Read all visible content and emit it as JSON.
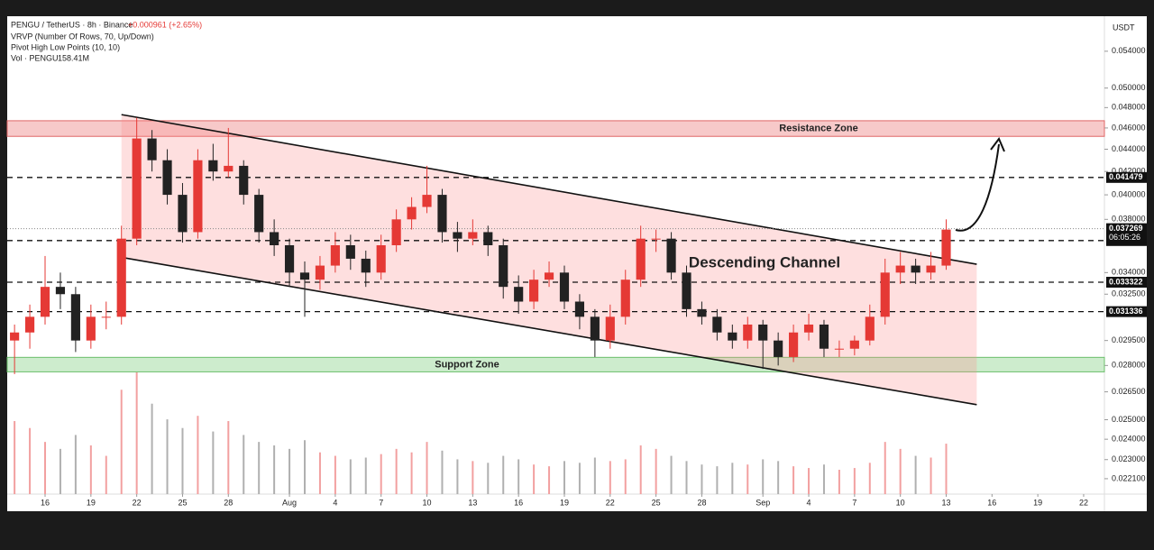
{
  "chart_data": {
    "type": "candlestick",
    "header": {
      "symbol": "PENGU / TetherUS · 8h · Binance",
      "change": "+0.000961 (+2.65%)",
      "indicator1": "VRVP (Number Of Rows, 70, Up/Down)",
      "indicator2": "Pivot High Low Points (10, 10)",
      "volume_label": "Vol · PENGU",
      "volume_value": "158.41M"
    },
    "y_unit": "USDT",
    "log_scale": true,
    "xlim": [
      13.52,
      85.36
    ],
    "xticks": [
      {
        "value": 16,
        "label": "16"
      },
      {
        "value": 19,
        "label": "19"
      },
      {
        "value": 22,
        "label": "22"
      },
      {
        "value": 25,
        "label": "25"
      },
      {
        "value": 28,
        "label": "28"
      },
      {
        "value": 32,
        "label": "Aug"
      },
      {
        "value": 35,
        "label": "4"
      },
      {
        "value": 38,
        "label": "7"
      },
      {
        "value": 41,
        "label": "10"
      },
      {
        "value": 44,
        "label": "13"
      },
      {
        "value": 47,
        "label": "16"
      },
      {
        "value": 50,
        "label": "19"
      },
      {
        "value": 53,
        "label": "22"
      },
      {
        "value": 56,
        "label": "25"
      },
      {
        "value": 59,
        "label": "28"
      },
      {
        "value": 63,
        "label": "Sep"
      },
      {
        "value": 66,
        "label": "4"
      },
      {
        "value": 69,
        "label": "7"
      },
      {
        "value": 72,
        "label": "10"
      },
      {
        "value": 75,
        "label": "13"
      },
      {
        "value": 78,
        "label": "16"
      },
      {
        "value": 81,
        "label": "19"
      },
      {
        "value": 84,
        "label": "22"
      }
    ],
    "ylim": [
      0.0214,
      0.0581
    ],
    "yticks": [
      {
        "value": 0.054,
        "label": "0.054000"
      },
      {
        "value": 0.05,
        "label": "0.050000"
      },
      {
        "value": 0.048,
        "label": "0.048000"
      },
      {
        "value": 0.046,
        "label": "0.046000"
      },
      {
        "value": 0.044,
        "label": "0.044000"
      },
      {
        "value": 0.042,
        "label": "0.042000"
      },
      {
        "value": 0.04,
        "label": "0.040000"
      },
      {
        "value": 0.038,
        "label": "0.038000"
      },
      {
        "value": 0.034,
        "label": "0.034000"
      },
      {
        "value": 0.0325,
        "label": "0.032500"
      },
      {
        "value": 0.0295,
        "label": "0.029500"
      },
      {
        "value": 0.028,
        "label": "0.028000"
      },
      {
        "value": 0.0265,
        "label": "0.026500"
      },
      {
        "value": 0.025,
        "label": "0.025000"
      },
      {
        "value": 0.024,
        "label": "0.024000"
      },
      {
        "value": 0.023,
        "label": "0.023000"
      },
      {
        "value": 0.0221,
        "label": "0.022100"
      }
    ],
    "up_color": "#e53935",
    "down_color": "#222222",
    "x": [
      14,
      15,
      16,
      17,
      18,
      19,
      20,
      21,
      22,
      23,
      24,
      25,
      26,
      27,
      28,
      29,
      30,
      31,
      32,
      33,
      34,
      35,
      36,
      37,
      38,
      39,
      40,
      41,
      42,
      43,
      44,
      45,
      46,
      47,
      48,
      49,
      50,
      51,
      52,
      53,
      54,
      55,
      56,
      57,
      58,
      59,
      60,
      61,
      62,
      63,
      64,
      65,
      66,
      67,
      68,
      69,
      70,
      71,
      72,
      73,
      74,
      75
    ],
    "open": [
      0.0295,
      0.03,
      0.031,
      0.033,
      0.0325,
      0.0295,
      0.031,
      0.031,
      0.0365,
      0.045,
      0.043,
      0.04,
      0.037,
      0.043,
      0.042,
      0.0425,
      0.04,
      0.037,
      0.036,
      0.034,
      0.0335,
      0.0345,
      0.036,
      0.035,
      0.034,
      0.036,
      0.038,
      0.039,
      0.04,
      0.037,
      0.0365,
      0.037,
      0.036,
      0.033,
      0.032,
      0.0335,
      0.034,
      0.032,
      0.031,
      0.0295,
      0.031,
      0.0335,
      0.0365,
      0.0365,
      0.034,
      0.0315,
      0.031,
      0.03,
      0.0295,
      0.0305,
      0.0295,
      0.0285,
      0.03,
      0.0305,
      0.029,
      0.029,
      0.0295,
      0.031,
      0.034,
      0.0345,
      0.034,
      0.0345
    ],
    "high": [
      0.0305,
      0.0318,
      0.0352,
      0.034,
      0.033,
      0.0318,
      0.032,
      0.0375,
      0.047,
      0.0458,
      0.044,
      0.041,
      0.044,
      0.0445,
      0.046,
      0.043,
      0.0405,
      0.038,
      0.0365,
      0.0348,
      0.0352,
      0.037,
      0.0368,
      0.0356,
      0.0368,
      0.0388,
      0.0398,
      0.0425,
      0.0405,
      0.0378,
      0.038,
      0.0375,
      0.0365,
      0.0338,
      0.0342,
      0.0348,
      0.0345,
      0.0325,
      0.0315,
      0.0318,
      0.0342,
      0.0375,
      0.0372,
      0.037,
      0.0345,
      0.032,
      0.0315,
      0.0305,
      0.031,
      0.0308,
      0.03,
      0.0305,
      0.0312,
      0.0308,
      0.0295,
      0.0298,
      0.0318,
      0.035,
      0.0355,
      0.035,
      0.0355,
      0.038
    ],
    "low": [
      0.0275,
      0.029,
      0.0305,
      0.0315,
      0.0288,
      0.029,
      0.0302,
      0.0305,
      0.036,
      0.042,
      0.0392,
      0.0362,
      0.0365,
      0.0412,
      0.0415,
      0.0392,
      0.0362,
      0.0352,
      0.033,
      0.031,
      0.0328,
      0.034,
      0.0342,
      0.033,
      0.0335,
      0.0355,
      0.0372,
      0.0385,
      0.0362,
      0.0355,
      0.036,
      0.0352,
      0.0322,
      0.0312,
      0.0315,
      0.033,
      0.0315,
      0.0302,
      0.0285,
      0.029,
      0.0305,
      0.033,
      0.0355,
      0.0335,
      0.031,
      0.0305,
      0.0295,
      0.029,
      0.029,
      0.0278,
      0.028,
      0.0282,
      0.0295,
      0.0285,
      0.0285,
      0.0286,
      0.0292,
      0.0305,
      0.0332,
      0.0332,
      0.0335,
      0.0342
    ],
    "close": [
      0.03,
      0.031,
      0.033,
      0.0325,
      0.0295,
      0.031,
      0.031,
      0.0365,
      0.045,
      0.043,
      0.04,
      0.037,
      0.043,
      0.042,
      0.0425,
      0.04,
      0.037,
      0.036,
      0.034,
      0.0335,
      0.0345,
      0.036,
      0.035,
      0.034,
      0.036,
      0.038,
      0.039,
      0.04,
      0.037,
      0.0365,
      0.037,
      0.036,
      0.033,
      0.032,
      0.0335,
      0.034,
      0.032,
      0.031,
      0.0295,
      0.031,
      0.0335,
      0.0365,
      0.0365,
      0.034,
      0.0315,
      0.031,
      0.03,
      0.0295,
      0.0305,
      0.0295,
      0.0285,
      0.03,
      0.0305,
      0.029,
      0.029,
      0.0295,
      0.031,
      0.034,
      0.0345,
      0.034,
      0.0345,
      0.0372
    ],
    "volume": [
      420,
      380,
      300,
      260,
      340,
      280,
      220,
      600,
      700,
      520,
      430,
      380,
      450,
      360,
      420,
      340,
      300,
      280,
      260,
      310,
      240,
      220,
      200,
      210,
      230,
      260,
      240,
      300,
      250,
      200,
      190,
      180,
      220,
      200,
      170,
      160,
      190,
      180,
      210,
      190,
      200,
      280,
      260,
      220,
      190,
      170,
      160,
      180,
      170,
      200,
      190,
      160,
      150,
      170,
      140,
      150,
      180,
      300,
      260,
      220,
      210,
      290
    ],
    "levels": [
      0.041479,
      0.036354,
      0.033322,
      0.031336
    ],
    "last_price": 0.037269,
    "countdown": "06:05:26",
    "zones": [
      {
        "label": "Resistance Zone",
        "range": [
          0.0452,
          0.0467
        ],
        "color": "#f7c9c9",
        "border": "#e06666"
      },
      {
        "label": "Support Zone",
        "range": [
          0.02763,
          0.02848
        ],
        "color": "#cdeccd",
        "border": "#6cbf6c"
      }
    ],
    "channel": {
      "label": "Descending Channel",
      "upper": [
        [
          21,
          0.0473
        ],
        [
          77,
          0.0346
        ]
      ],
      "lower": [
        [
          21,
          0.0351
        ],
        [
          77,
          0.0258
        ]
      ]
    }
  }
}
